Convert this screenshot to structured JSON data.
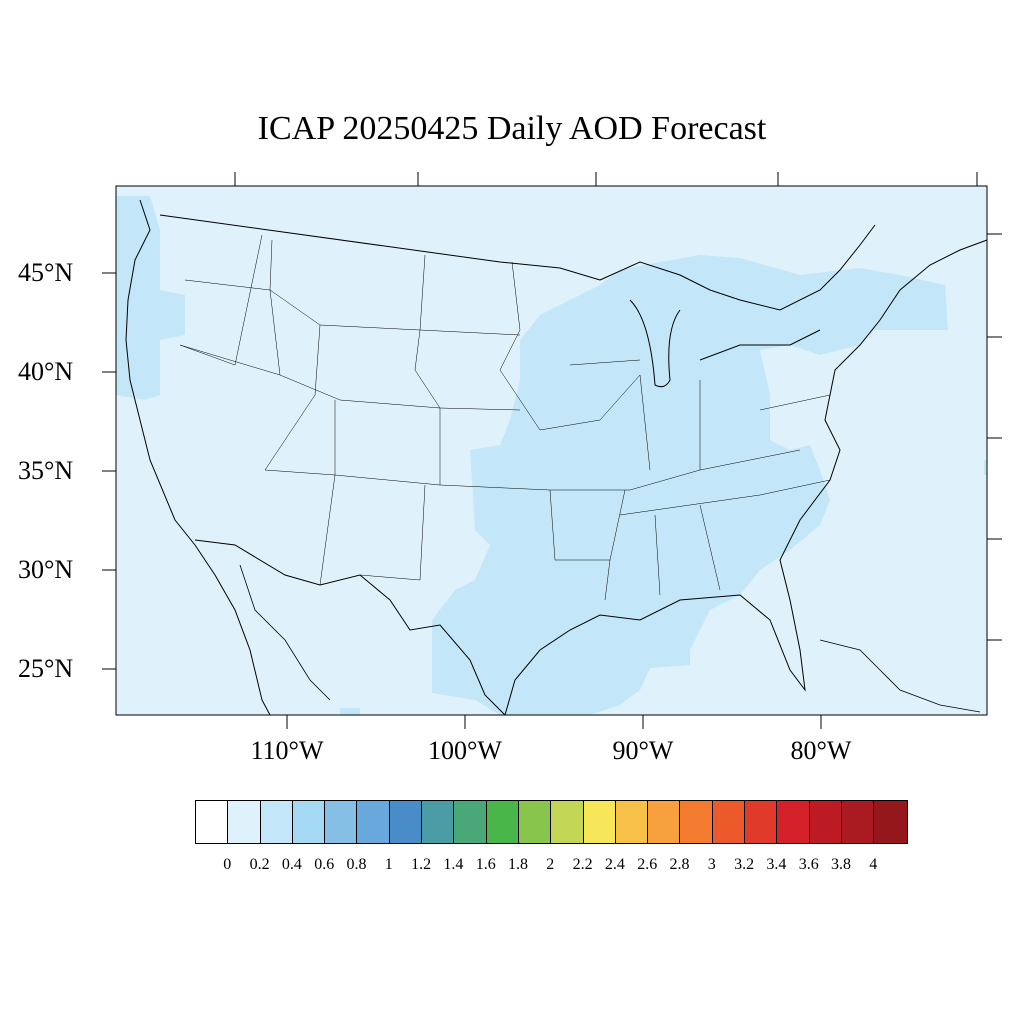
{
  "title": "ICAP 20250425 Daily AOD Forecast",
  "map": {
    "region": "Continental United States",
    "background_color": "#dff2fb",
    "elevated_color": "#c3e7f8",
    "lat_labels": [
      "45°N",
      "40°N",
      "35°N",
      "30°N",
      "25°N"
    ],
    "lon_labels": [
      "110°W",
      "100°W",
      "90°W",
      "80°W"
    ]
  },
  "colorbar": {
    "colors": [
      "#ffffff",
      "#dff2fb",
      "#c3e7f8",
      "#a5d9f3",
      "#85bfe6",
      "#68a8dc",
      "#4a8cc8",
      "#4a9ba3",
      "#4aa878",
      "#49b649",
      "#87c54d",
      "#c4d655",
      "#f5e65a",
      "#f6c049",
      "#f6a03e",
      "#f37b30",
      "#ec5a2c",
      "#e03a2b",
      "#d42029",
      "#bd1b24",
      "#a91a21",
      "#94171b"
    ],
    "labels": [
      "0",
      "0.2",
      "0.4",
      "0.6",
      "0.8",
      "1",
      "1.2",
      "1.4",
      "1.6",
      "1.8",
      "2",
      "2.2",
      "2.4",
      "2.6",
      "2.8",
      "3",
      "3.2",
      "3.4",
      "3.6",
      "3.8",
      "4"
    ]
  }
}
